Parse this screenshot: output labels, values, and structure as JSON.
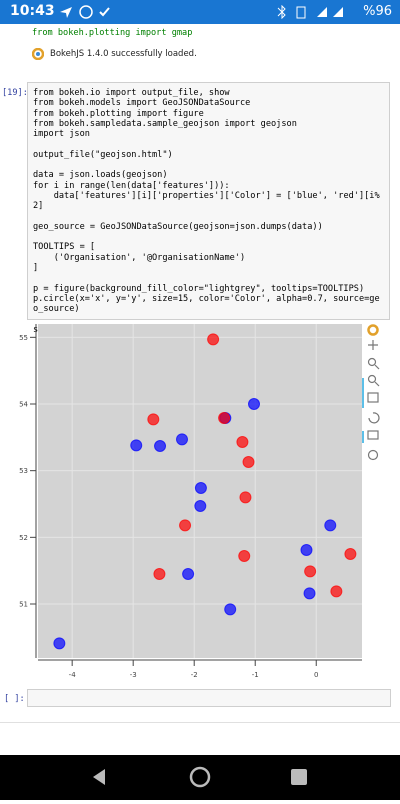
{
  "status_bar": {
    "time": "10:43",
    "battery": "%96"
  },
  "previous_cell": {
    "code_tail": "from bokeh.plotting import gmap",
    "output": "BokehJS 1.4.0 successfully loaded."
  },
  "cell": {
    "prompt": "[19]:",
    "code": [
      [
        "from bokeh.io import output_file, show",
        "from bokeh.models import GeoJSONDataSource",
        "from bokeh.plotting import figure",
        "from bokeh.sampledata.sample_geojson import geojson",
        "import json"
      ],
      [
        "output_file(\"geojson.html\")"
      ],
      [
        "data = json.loads(geojson)",
        "for i in range(len(data['features'])):",
        "    data['features'][i]['properties']['Color'] = ['blue', 'red'][i%2]"
      ],
      [
        "geo_source = GeoJSONDataSource(geojson=json.dumps(data))"
      ],
      [
        "TOOLTIPS = [",
        "    ('Organisation', '@OrganisationName')",
        "]"
      ],
      [
        "p = figure(background_fill_color=\"lightgrey\", tooltips=TOOLTIPS)",
        "p.circle(x='x', y='y', size=15, color='Color', alpha=0.7, source=geo_source)"
      ],
      [
        "show(p)"
      ]
    ]
  },
  "empty_cell": {
    "prompt": "[ ]:"
  },
  "chart_data": {
    "type": "scatter",
    "background": "#d3d3d3",
    "alpha": 0.7,
    "grid": true,
    "xlim": [
      -4.56,
      0.75
    ],
    "ylim": [
      50.19,
      55.2
    ],
    "xticks": [
      -4,
      -3,
      -2,
      -1,
      0
    ],
    "yticks": [
      51,
      52,
      53,
      54,
      55
    ],
    "series": [
      {
        "color": "#0000ff",
        "x": [
          -4.21,
          -2.95,
          -2.56,
          -2.2,
          -1.89,
          -1.9,
          -2.1,
          -1.49,
          -1.02,
          -1.41,
          -0.16,
          0.23,
          -0.11
        ],
        "values": [
          50.41,
          53.38,
          53.37,
          53.47,
          52.74,
          52.47,
          51.45,
          53.79,
          54.0,
          50.92,
          51.81,
          52.18,
          51.16
        ]
      },
      {
        "color": "#ff0000",
        "x": [
          -1.69,
          -2.67,
          -1.51,
          -1.21,
          -1.11,
          -1.16,
          -2.15,
          -2.57,
          -1.18,
          -0.1,
          0.33,
          0.56
        ],
        "values": [
          54.97,
          53.77,
          53.79,
          53.43,
          53.13,
          52.6,
          52.18,
          51.45,
          51.72,
          51.49,
          51.19,
          51.75
        ]
      }
    ]
  }
}
